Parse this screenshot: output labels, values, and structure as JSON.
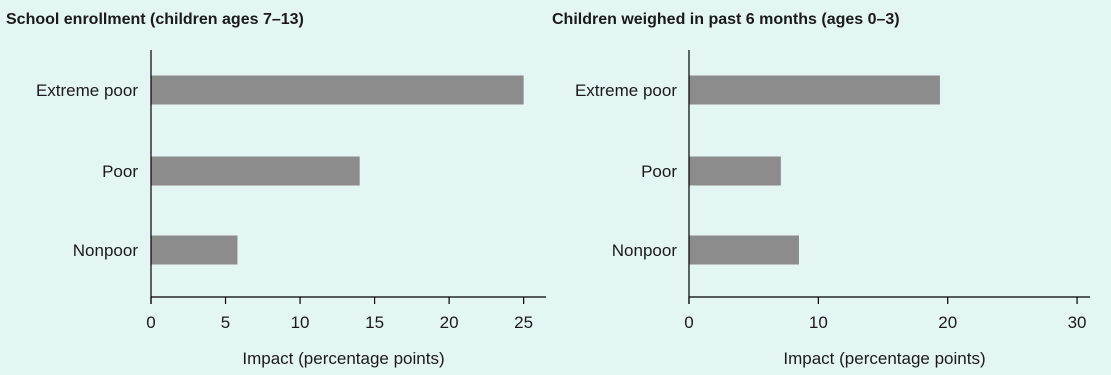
{
  "chart_data": [
    {
      "type": "bar",
      "orientation": "horizontal",
      "title": "School enrollment (children ages 7–13)",
      "categories": [
        "Extreme poor",
        "Poor",
        "Nonpoor"
      ],
      "values": [
        25,
        14,
        5.8
      ],
      "xlabel": "Impact (percentage points)",
      "ylabel": "",
      "xlim": [
        0,
        26.5
      ],
      "xticks": [
        0,
        5,
        10,
        15,
        20,
        25
      ],
      "grid": false,
      "bar_color": "#8c8c8c"
    },
    {
      "type": "bar",
      "orientation": "horizontal",
      "title": "Children weighed in past 6 months (ages 0–3)",
      "categories": [
        "Extreme poor",
        "Poor",
        "Nonpoor"
      ],
      "values": [
        19.4,
        7.1,
        8.5
      ],
      "xlabel": "Impact (percentage points)",
      "ylabel": "",
      "xlim": [
        0,
        31
      ],
      "xticks": [
        0,
        10,
        20,
        30
      ],
      "grid": false,
      "bar_color": "#8c8c8c"
    }
  ]
}
